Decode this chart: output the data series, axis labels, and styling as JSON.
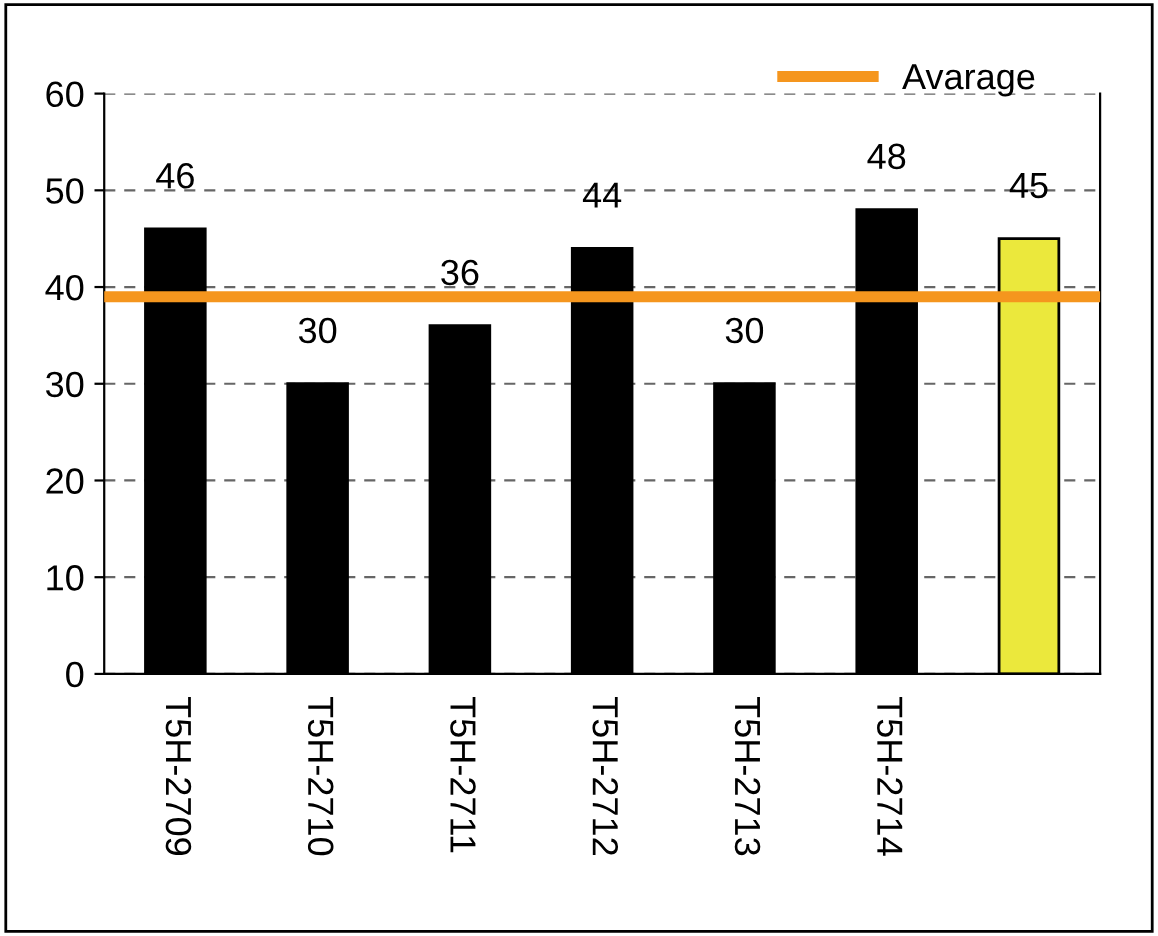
{
  "chart_data": {
    "type": "bar",
    "categories": [
      "T5H-2709",
      "T5H-2710",
      "T5H-2711",
      "T5H-2712",
      "T5H-2713",
      "T5H-2714",
      null
    ],
    "values": [
      46,
      30,
      36,
      44,
      30,
      48,
      45
    ],
    "colors": [
      "#000000",
      "#000000",
      "#000000",
      "#000000",
      "#000000",
      "#000000",
      "#ebe83c"
    ],
    "data_labels": true,
    "ylim": [
      0,
      60
    ],
    "yticks": [
      0,
      10,
      20,
      30,
      40,
      50,
      60
    ],
    "grid": "y",
    "legend": "top right",
    "ref_lines": [
      {
        "axis": "y",
        "value": 39,
        "label": "Avarage",
        "color": "#f5961e",
        "line_style": "solid"
      }
    ]
  }
}
